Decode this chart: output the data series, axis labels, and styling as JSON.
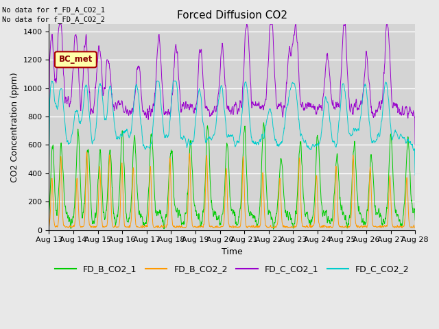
{
  "title": "Forced Diffusion CO2",
  "xlabel": "Time",
  "ylabel": "CO2 Concentration (ppm)",
  "ylim": [
    0,
    1450
  ],
  "yticks": [
    0,
    200,
    400,
    600,
    800,
    1000,
    1200,
    1400
  ],
  "date_labels": [
    "Aug 13",
    "Aug 14",
    "Aug 15",
    "Aug 16",
    "Aug 17",
    "Aug 18",
    "Aug 19",
    "Aug 20",
    "Aug 21",
    "Aug 22",
    "Aug 23",
    "Aug 24",
    "Aug 25",
    "Aug 26",
    "Aug 27",
    "Aug 28"
  ],
  "no_data_text1": "No data for f_FD_A_CO2_1",
  "no_data_text2": "No data for f_FD_A_CO2_2",
  "bc_met_label": "BC_met",
  "legend_entries": [
    "FD_B_CO2_1",
    "FD_B_CO2_2",
    "FD_C_CO2_1",
    "FD_C_CO2_2"
  ],
  "colors": {
    "FD_B_CO2_1": "#00cc00",
    "FD_B_CO2_2": "#ff9900",
    "FD_C_CO2_1": "#9900cc",
    "FD_C_CO2_2": "#00cccc"
  },
  "bg_color": "#e8e8e8",
  "plot_bg_color": "#d4d4d4",
  "grid_color": "#ffffff",
  "title_fontsize": 11,
  "axis_fontsize": 9,
  "tick_fontsize": 8,
  "legend_fontsize": 9
}
